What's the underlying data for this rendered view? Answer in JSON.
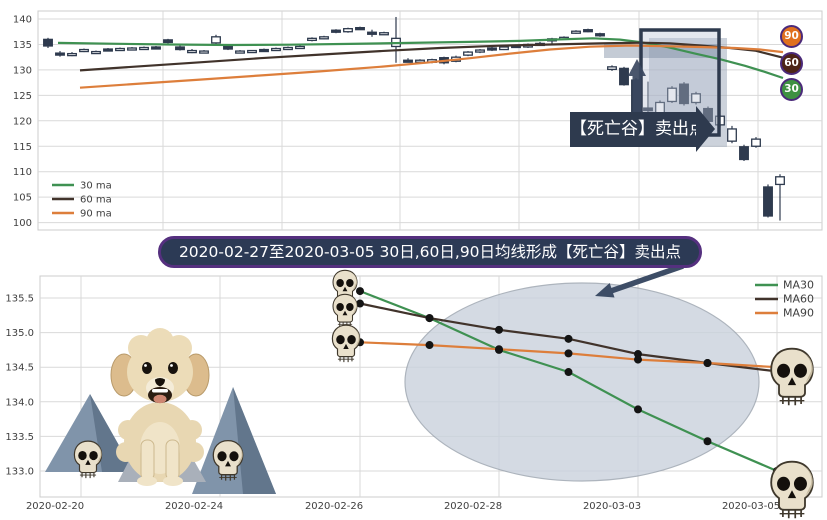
{
  "banner": {
    "text": "2020-02-27至2020-03-05 30日,60日,90日均线形成【死亡谷】卖出点"
  },
  "top_chart": {
    "legend": [
      {
        "label": "30 ma",
        "color": "#3f9152"
      },
      {
        "label": "60 ma",
        "color": "#41332b"
      },
      {
        "label": "90 ma",
        "color": "#dd7e3b"
      }
    ],
    "badges": [
      {
        "label": "90",
        "bg": "#e0701e"
      },
      {
        "label": "60",
        "bg": "#4d2417"
      },
      {
        "label": "30",
        "bg": "#3e9142"
      }
    ],
    "annotation": {
      "label": "【死亡谷】卖出点"
    },
    "colors": {
      "candle": "#2e3a4e",
      "highlight_box_border": "#2e3a4e",
      "grid": "#d9d9d9"
    }
  },
  "bottom_chart": {
    "legend": [
      {
        "label": "MA30",
        "color": "#3f9152"
      },
      {
        "label": "MA60",
        "color": "#41332b"
      },
      {
        "label": "MA90",
        "color": "#dd7e3b"
      }
    ],
    "colors": {
      "ellipse_fill": "#cad2dd",
      "ellipse_stroke": "#99a2ad",
      "dot": "#141414",
      "arrow": "#3d4d66"
    }
  },
  "chart_data": [
    {
      "type": "candlestick",
      "title": "",
      "ylim": [
        99,
        141.5
      ],
      "y_ticks": [
        140,
        135,
        130,
        125,
        120,
        115,
        110,
        105,
        100
      ],
      "grid": true,
      "legend_position": "lower left",
      "candles": [
        [
          48,
          136,
          136.3,
          134.3,
          134.7
        ],
        [
          60,
          133.3,
          133.7,
          132.6,
          133.1
        ],
        [
          72,
          133,
          133.5,
          132.7,
          133.2
        ],
        [
          84,
          133.7,
          134.2,
          133.5,
          134
        ],
        [
          96,
          133.4,
          133.8,
          133.2,
          133.6
        ],
        [
          108,
          134.1,
          134.3,
          133.8,
          133.9
        ],
        [
          120,
          133.9,
          134.4,
          133.8,
          134.2
        ],
        [
          132,
          134.2,
          134.5,
          134,
          134.3
        ],
        [
          144,
          134.3,
          134.6,
          134.1,
          134.4
        ],
        [
          156,
          134.5,
          134.7,
          134.2,
          134.4
        ],
        [
          168,
          135.9,
          136.1,
          135.2,
          135.4
        ],
        [
          180,
          134.5,
          134.8,
          133.8,
          134
        ],
        [
          192,
          133.4,
          134.1,
          133.3,
          133.8
        ],
        [
          204,
          133.5,
          133.9,
          133.3,
          133.7
        ],
        [
          216,
          135.3,
          136.9,
          135,
          136.5
        ],
        [
          228,
          134.6,
          134.9,
          133.9,
          134.1
        ],
        [
          240,
          133.5,
          133.9,
          133.3,
          133.7
        ],
        [
          252,
          133.6,
          133.9,
          133.4,
          133.8
        ],
        [
          264,
          134,
          134.2,
          133.6,
          133.8
        ],
        [
          276,
          133.9,
          134.4,
          133.8,
          134.2
        ],
        [
          288,
          134.2,
          134.6,
          134,
          134.4
        ],
        [
          300,
          134.4,
          134.8,
          134.2,
          134.6
        ],
        [
          312,
          135.8,
          136.4,
          135.6,
          136.2
        ],
        [
          324,
          136.3,
          136.7,
          136,
          136.5
        ],
        [
          336,
          137.8,
          138,
          137.2,
          137.4
        ],
        [
          348,
          137.5,
          138.3,
          137.3,
          138.1
        ],
        [
          360,
          138.3,
          138.5,
          137.9,
          138.1
        ],
        [
          372,
          137.4,
          137.9,
          136.5,
          137
        ],
        [
          384,
          137.1,
          137.5,
          136.9,
          137.3
        ],
        [
          396,
          134.6,
          140.4,
          131.4,
          136.2
        ],
        [
          408,
          131.9,
          132.3,
          131.5,
          131.8
        ],
        [
          420,
          131.7,
          132.1,
          131.4,
          131.9
        ],
        [
          432,
          131.5,
          132.2,
          131.3,
          132
        ],
        [
          444,
          132.4,
          132.6,
          131.1,
          131.4
        ],
        [
          456,
          131.7,
          132.8,
          131.5,
          132.5
        ],
        [
          468,
          132.9,
          133.7,
          132.7,
          133.5
        ],
        [
          480,
          133.6,
          134.1,
          133.3,
          133.9
        ],
        [
          492,
          134.3,
          134.6,
          133.7,
          134.2
        ],
        [
          504,
          134,
          134.7,
          133.9,
          134.5
        ],
        [
          516,
          134.8,
          135,
          134.4,
          134.6
        ],
        [
          528,
          134.5,
          135.2,
          134.3,
          135
        ],
        [
          540,
          135.1,
          135.5,
          134.8,
          135.2
        ],
        [
          552,
          135.9,
          136.3,
          135,
          136.1
        ],
        [
          564,
          136.2,
          136.6,
          135.9,
          136.4
        ],
        [
          576,
          137.5,
          137.8,
          137.1,
          137.6
        ],
        [
          588,
          137.9,
          138.1,
          137.4,
          137.6
        ],
        [
          600,
          137.1,
          137.3,
          136.5,
          136.7
        ],
        [
          612,
          130.1,
          130.9,
          129.8,
          130.6
        ],
        [
          624,
          130.3,
          130.6,
          126.9,
          127.1
        ],
        [
          636,
          128,
          128.4,
          120.8,
          121.3
        ],
        [
          648,
          122.5,
          127.7,
          120.1,
          122
        ],
        [
          660,
          121.3,
          124,
          120.9,
          123.6
        ],
        [
          672,
          123.8,
          126.8,
          123.5,
          126.4
        ],
        [
          684,
          127.2,
          127.6,
          123,
          123.4
        ],
        [
          696,
          123.6,
          125.7,
          123.2,
          125.3
        ],
        [
          708,
          122.4,
          122.8,
          119.5,
          119.9
        ],
        [
          720,
          119.2,
          121.2,
          118.7,
          120.9
        ],
        [
          732,
          116,
          119,
          115.6,
          118.4
        ],
        [
          744,
          114.9,
          115.3,
          112.1,
          112.4
        ],
        [
          756,
          115,
          116.8,
          114.7,
          116.4
        ],
        [
          768,
          107,
          107.5,
          101,
          101.3
        ],
        [
          780,
          107.5,
          109.5,
          100.4,
          109
        ]
      ],
      "ma_series": [
        {
          "name": "30 ma",
          "color": "#3f9152",
          "points": [
            [
              58,
              135.3
            ],
            [
              110,
              135.15
            ],
            [
              170,
              135
            ],
            [
              230,
              134.9
            ],
            [
              290,
              134.95
            ],
            [
              350,
              135.1
            ],
            [
              410,
              135.3
            ],
            [
              470,
              135.5
            ],
            [
              520,
              135.7
            ],
            [
              560,
              136
            ],
            [
              593,
              136.2
            ],
            [
              620,
              135.95
            ],
            [
              642,
              135.4
            ],
            [
              668,
              134.45
            ],
            [
              695,
              133.2
            ],
            [
              720,
              132.1
            ],
            [
              745,
              130.8
            ],
            [
              765,
              129.6
            ],
            [
              783,
              128.4
            ]
          ]
        },
        {
          "name": "60 ma",
          "color": "#41332b",
          "points": [
            [
              80,
              129.9
            ],
            [
              140,
              130.7
            ],
            [
              200,
              131.5
            ],
            [
              260,
              132.3
            ],
            [
              320,
              133
            ],
            [
              380,
              133.7
            ],
            [
              440,
              134.3
            ],
            [
              500,
              134.75
            ],
            [
              550,
              135
            ],
            [
              600,
              135.2
            ],
            [
              640,
              135.35
            ],
            [
              670,
              135.2
            ],
            [
              700,
              134.8
            ],
            [
              730,
              134.3
            ],
            [
              755,
              133.8
            ],
            [
              783,
              132.4
            ]
          ]
        },
        {
          "name": "90 ma",
          "color": "#dd7e3b",
          "points": [
            [
              80,
              126.5
            ],
            [
              140,
              127.3
            ],
            [
              200,
              128.1
            ],
            [
              260,
              128.9
            ],
            [
              320,
              129.7
            ],
            [
              380,
              130.6
            ],
            [
              430,
              131.5
            ],
            [
              470,
              132.3
            ],
            [
              510,
              133.2
            ],
            [
              550,
              134
            ],
            [
              590,
              134.55
            ],
            [
              630,
              134.8
            ],
            [
              665,
              134.65
            ],
            [
              700,
              134.5
            ],
            [
              735,
              134.3
            ],
            [
              760,
              134
            ],
            [
              783,
              133.5
            ]
          ]
        }
      ],
      "annotation": "【死亡谷】卖出点",
      "badges": [
        "90",
        "60",
        "30"
      ]
    },
    {
      "type": "line",
      "dates": [
        "2020-02-26",
        "2020-02-27",
        "2020-02-28",
        "2020-03-02",
        "2020-03-03",
        "2020-03-04",
        "2020-03-05"
      ],
      "x_tick_labels": [
        "2020-02-20",
        "2020-02-24",
        "2020-02-26",
        "2020-02-28",
        "2020-03-03",
        "2020-03-05"
      ],
      "y_ticks": [
        135.5,
        135.0,
        134.5,
        134.0,
        133.5,
        133.0
      ],
      "ylim": [
        132.7,
        135.8
      ],
      "grid": true,
      "legend_position": "upper right",
      "series": [
        {
          "name": "MA30",
          "color": "#3f9152",
          "values": [
            135.6,
            135.21,
            134.75,
            134.43,
            133.89,
            133.43,
            133.0
          ]
        },
        {
          "name": "MA60",
          "color": "#41332b",
          "values": [
            135.42,
            135.21,
            135.04,
            134.91,
            134.69,
            134.56,
            134.44
          ]
        },
        {
          "name": "MA90",
          "color": "#dd7e3b",
          "values": [
            134.86,
            134.82,
            134.76,
            134.7,
            134.61,
            134.56,
            134.5
          ]
        }
      ],
      "marker": {
        "shape": "circle",
        "color": "#141414"
      }
    }
  ]
}
